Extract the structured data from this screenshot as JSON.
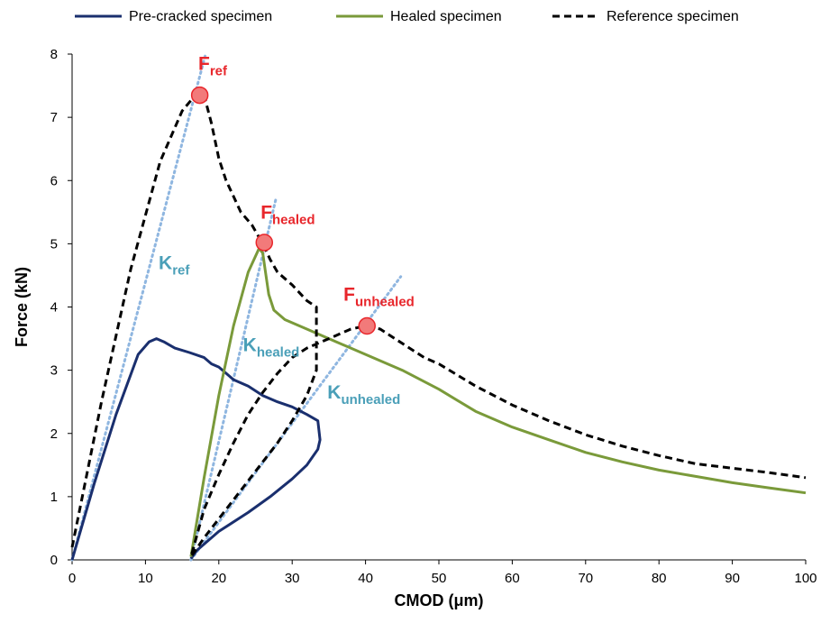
{
  "chart_data": {
    "type": "line",
    "xlabel": "CMOD (μm)",
    "ylabel": "Force (kN)",
    "xlim": [
      0,
      100
    ],
    "ylim": [
      0,
      8
    ],
    "xticks": [
      0,
      10,
      20,
      30,
      40,
      50,
      60,
      70,
      80,
      90,
      100
    ],
    "yticks": [
      0,
      1,
      2,
      3,
      4,
      5,
      6,
      7,
      8
    ],
    "grid": false,
    "legend_position": "top",
    "series": [
      {
        "name": "Pre-cracked specimen",
        "color": "#1a2f6e",
        "style": "solid",
        "x": [
          0,
          3,
          6,
          9,
          10.5,
          11.5,
          12.5,
          14,
          16,
          18,
          19,
          20,
          22,
          24,
          26,
          28,
          30,
          32,
          33.5,
          33.8,
          33.5,
          32,
          30,
          27,
          24,
          20,
          17,
          16.2
        ],
        "y": [
          0,
          1.2,
          2.3,
          3.25,
          3.45,
          3.5,
          3.45,
          3.35,
          3.28,
          3.2,
          3.1,
          3.05,
          2.85,
          2.75,
          2.6,
          2.5,
          2.42,
          2.3,
          2.2,
          1.9,
          1.75,
          1.5,
          1.28,
          1.0,
          0.75,
          0.45,
          0.15,
          0.02
        ]
      },
      {
        "name": "Healed specimen",
        "color": "#7a9a3a",
        "style": "solid",
        "x": [
          16.2,
          18,
          20,
          22,
          24,
          25.5,
          26,
          26.3,
          26.8,
          27.5,
          29,
          32,
          36,
          40,
          45,
          50,
          55,
          60,
          65,
          70,
          75,
          80,
          85,
          90,
          95,
          100
        ],
        "y": [
          0.05,
          1.3,
          2.6,
          3.7,
          4.55,
          4.93,
          4.85,
          4.6,
          4.2,
          3.95,
          3.8,
          3.65,
          3.45,
          3.25,
          3.0,
          2.7,
          2.35,
          2.1,
          1.9,
          1.7,
          1.55,
          1.42,
          1.32,
          1.22,
          1.14,
          1.06
        ]
      },
      {
        "name": "Reference specimen",
        "color": "#000000",
        "style": "dashed",
        "x": [
          0,
          4,
          8,
          12,
          15,
          17,
          18,
          19,
          20,
          21,
          22,
          23,
          24.5,
          26,
          27,
          28,
          30,
          32,
          33.3,
          33.3,
          32,
          30,
          28,
          26,
          24,
          22,
          20,
          18,
          16.2,
          18,
          20,
          22,
          24,
          26,
          28,
          30,
          32,
          34,
          36,
          38,
          40,
          42,
          44,
          46,
          48,
          50,
          55,
          60,
          65,
          70,
          75,
          80,
          85,
          90,
          95,
          100
        ],
        "y": [
          0.2,
          2.5,
          4.6,
          6.3,
          7.1,
          7.38,
          7.35,
          6.9,
          6.35,
          6.0,
          5.75,
          5.5,
          5.3,
          5.0,
          4.75,
          4.55,
          4.35,
          4.1,
          4.0,
          3.0,
          2.6,
          2.2,
          1.85,
          1.55,
          1.25,
          0.95,
          0.65,
          0.35,
          0.05,
          0.8,
          1.35,
          1.85,
          2.3,
          2.65,
          2.95,
          3.2,
          3.35,
          3.45,
          3.55,
          3.65,
          3.7,
          3.65,
          3.5,
          3.35,
          3.2,
          3.1,
          2.75,
          2.45,
          2.2,
          1.98,
          1.8,
          1.65,
          1.52,
          1.45,
          1.38,
          1.3
        ]
      }
    ],
    "tangent_lines": [
      {
        "x": [
          0,
          18.2
        ],
        "y": [
          0,
          8.0
        ]
      },
      {
        "x": [
          16.2,
          27.8
        ],
        "y": [
          0,
          5.72
        ]
      },
      {
        "x": [
          16.2,
          44.8
        ],
        "y": [
          0,
          4.48
        ]
      }
    ],
    "peak_markers": [
      {
        "x": 17.4,
        "y": 7.35
      },
      {
        "x": 26.2,
        "y": 5.02
      },
      {
        "x": 40.2,
        "y": 3.7
      }
    ],
    "annotations": [
      {
        "base": "F",
        "sub": "ref",
        "color": "red",
        "x": 17.2,
        "y": 7.75
      },
      {
        "base": "F",
        "sub": "healed",
        "color": "red",
        "x": 25.7,
        "y": 5.4
      },
      {
        "base": "F",
        "sub": "unhealed",
        "color": "red",
        "x": 37.0,
        "y": 4.1
      },
      {
        "base": "K",
        "sub": "ref",
        "color": "blue",
        "x": 11.8,
        "y": 4.6
      },
      {
        "base": "K",
        "sub": "healed",
        "color": "blue",
        "x": 23.3,
        "y": 3.3
      },
      {
        "base": "K",
        "sub": "unhealed",
        "color": "blue",
        "x": 34.8,
        "y": 2.55
      }
    ],
    "colors": {
      "annotation_red": "#e8262b",
      "annotation_blue": "#4a9fb8",
      "tangent": "#8fb6e0",
      "marker_fill": "#f27a7a"
    }
  }
}
